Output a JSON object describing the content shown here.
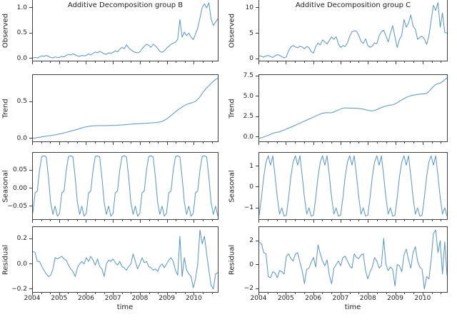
{
  "figure": {
    "xlabel": "time",
    "x_start": 2004,
    "x_end": 2010.9167,
    "x_tick_years": [
      2004,
      2005,
      2006,
      2007,
      2008,
      2009,
      2010
    ],
    "x_minor_fraction_step": 0.3333,
    "points_per_series": 84,
    "sampling": "monthly 2004-01 to 2010-12",
    "colors": {
      "line": "#5595c0",
      "spine": "#3f3f3f",
      "text": "#1f1f1f",
      "background": "#ffffff"
    }
  },
  "chart_data": [
    {
      "id": "observed-group-b",
      "type": "line",
      "title": "Additive Decomposition group B",
      "ylabel": "Observed",
      "y_ticks": [
        {
          "v": 1.0,
          "label": "1.0"
        },
        {
          "v": 0.5,
          "label": "0.5"
        },
        {
          "v": 0.0,
          "label": "0.0"
        }
      ],
      "values": [
        0.01,
        0.02,
        0.01,
        0.03,
        0.05,
        0.04,
        0.06,
        0.04,
        0.02,
        0.01,
        0.03,
        0.02,
        0.02,
        0.04,
        0.03,
        0.06,
        0.08,
        0.07,
        0.09,
        0.07,
        0.05,
        0.04,
        0.06,
        0.05,
        0.06,
        0.09,
        0.07,
        0.1,
        0.13,
        0.11,
        0.14,
        0.12,
        0.09,
        0.08,
        0.11,
        0.1,
        0.12,
        0.15,
        0.13,
        0.18,
        0.22,
        0.19,
        0.27,
        0.21,
        0.17,
        0.14,
        0.12,
        0.11,
        0.13,
        0.19,
        0.24,
        0.28,
        0.26,
        0.22,
        0.28,
        0.25,
        0.2,
        0.14,
        0.12,
        0.15,
        0.2,
        0.24,
        0.28,
        0.3,
        0.32,
        0.38,
        0.77,
        0.42,
        0.52,
        0.45,
        0.5,
        0.42,
        0.37,
        0.48,
        0.6,
        0.8,
        1.0,
        1.08,
        1.0,
        1.1,
        0.78,
        0.65,
        0.72,
        0.78
      ]
    },
    {
      "id": "trend-group-b",
      "type": "line",
      "ylabel": "Trend",
      "y_ticks": [
        {
          "v": 0.5,
          "label": "0.5"
        },
        {
          "v": 0.0,
          "label": "0.0"
        }
      ],
      "values": [
        0.0,
        0.005,
        0.01,
        0.015,
        0.02,
        0.025,
        0.03,
        0.034,
        0.038,
        0.043,
        0.048,
        0.054,
        0.06,
        0.067,
        0.074,
        0.082,
        0.09,
        0.098,
        0.106,
        0.114,
        0.123,
        0.132,
        0.141,
        0.15,
        0.158,
        0.163,
        0.167,
        0.17,
        0.171,
        0.172,
        0.172,
        0.173,
        0.173,
        0.174,
        0.174,
        0.175,
        0.175,
        0.176,
        0.178,
        0.18,
        0.182,
        0.185,
        0.187,
        0.19,
        0.192,
        0.195,
        0.197,
        0.199,
        0.2,
        0.202,
        0.204,
        0.206,
        0.208,
        0.21,
        0.212,
        0.215,
        0.218,
        0.222,
        0.23,
        0.245,
        0.262,
        0.285,
        0.31,
        0.335,
        0.36,
        0.385,
        0.405,
        0.425,
        0.445,
        0.46,
        0.472,
        0.48,
        0.488,
        0.505,
        0.53,
        0.565,
        0.61,
        0.65,
        0.685,
        0.715,
        0.745,
        0.775,
        0.8,
        0.82
      ]
    },
    {
      "id": "seasonal-group-b",
      "type": "line",
      "ylabel": "Seasonal",
      "y_ticks": [
        {
          "v": 0.05,
          "label": "0.05"
        },
        {
          "v": 0.0,
          "label": "0.00"
        },
        {
          "v": -0.05,
          "label": "−0.05"
        }
      ],
      "period_months": 12,
      "cycles": 7,
      "seasonal_pattern": [
        -0.07,
        -0.013,
        -0.008,
        0.05,
        0.088,
        0.09,
        0.087,
        0.03,
        -0.04,
        -0.073,
        -0.05,
        -0.078
      ]
    },
    {
      "id": "residual-group-b",
      "type": "line",
      "ylabel": "Residual",
      "y_ticks": [
        {
          "v": 0.2,
          "label": "0.2"
        },
        {
          "v": 0.0,
          "label": "0.0"
        },
        {
          "v": -0.2,
          "label": "−0.2"
        }
      ],
      "values": [
        0.1,
        0.09,
        0.02,
        0.02,
        -0.02,
        -0.05,
        -0.08,
        -0.1,
        -0.09,
        -0.04,
        0.05,
        0.04,
        0.05,
        0.06,
        0.04,
        0.03,
        -0.01,
        -0.04,
        -0.06,
        -0.1,
        -0.03,
        0.0,
        0.02,
        0.0,
        0.05,
        0.02,
        0.06,
        0.03,
        -0.01,
        0.04,
        -0.02,
        -0.04,
        -0.1,
        0.0,
        0.03,
        0.02,
        0.04,
        0.01,
        -0.01,
        0.02,
        -0.02,
        -0.03,
        -0.05,
        -0.02,
        0.0,
        0.08,
        0.02,
        -0.04,
        0.0,
        0.05,
        0.01,
        0.02,
        -0.02,
        -0.03,
        -0.05,
        -0.04,
        -0.06,
        -0.02,
        0.0,
        -0.03,
        0.0,
        0.03,
        0.05,
        0.02,
        -0.05,
        -0.09,
        0.22,
        -0.1,
        0.05,
        -0.05,
        -0.08,
        -0.1,
        -0.19,
        -0.12,
        0.0,
        0.27,
        0.16,
        0.22,
        0.08,
        -0.05,
        -0.17,
        -0.2,
        -0.08,
        -0.07
      ]
    },
    {
      "id": "observed-group-c",
      "type": "line",
      "title": "Additive Decomposition group C",
      "ylabel": "Observed",
      "y_ticks": [
        {
          "v": 10,
          "label": "10"
        },
        {
          "v": 5,
          "label": "5"
        },
        {
          "v": 0,
          "label": "0"
        }
      ],
      "values": [
        0.6,
        0.45,
        0.3,
        0.55,
        0.65,
        0.4,
        0.25,
        0.55,
        0.8,
        0.65,
        0.4,
        0.15,
        0.35,
        1.6,
        2.3,
        2.6,
        2.3,
        2.15,
        2.5,
        2.3,
        1.95,
        2.4,
        2.15,
        1.4,
        1.1,
        2.4,
        3.1,
        2.7,
        3.7,
        3.3,
        2.9,
        3.6,
        4.3,
        3.8,
        4.35,
        2.9,
        2.2,
        2.6,
        2.4,
        3.1,
        4.4,
        5.3,
        5.5,
        5.4,
        4.6,
        3.4,
        3.0,
        3.9,
        2.6,
        2.25,
        2.5,
        3.1,
        2.95,
        4.5,
        5.3,
        5.6,
        4.5,
        3.3,
        5.0,
        6.5,
        4.3,
        2.2,
        3.8,
        4.6,
        7.7,
        6.2,
        7.0,
        8.6,
        6.4,
        5.8,
        3.8,
        4.2,
        4.4,
        3.9,
        2.8,
        4.5,
        7.5,
        10.5,
        9.5,
        11.0,
        6.2,
        9.0,
        5.2,
        5.0
      ]
    },
    {
      "id": "trend-group-c",
      "type": "line",
      "ylabel": "Trend",
      "y_ticks": [
        {
          "v": 7.5,
          "label": "7.5"
        },
        {
          "v": 5.0,
          "label": "5.0"
        },
        {
          "v": 2.5,
          "label": "2.5"
        },
        {
          "v": 0.0,
          "label": "0.0"
        }
      ],
      "values": [
        -0.2,
        -0.12,
        -0.03,
        0.07,
        0.18,
        0.3,
        0.42,
        0.5,
        0.55,
        0.62,
        0.72,
        0.83,
        0.95,
        1.07,
        1.18,
        1.3,
        1.42,
        1.55,
        1.68,
        1.8,
        1.93,
        2.05,
        2.18,
        2.3,
        2.42,
        2.55,
        2.68,
        2.8,
        2.9,
        2.95,
        2.97,
        2.95,
        2.96,
        3.05,
        3.18,
        3.3,
        3.42,
        3.52,
        3.56,
        3.55,
        3.53,
        3.52,
        3.51,
        3.5,
        3.48,
        3.45,
        3.4,
        3.33,
        3.27,
        3.22,
        3.2,
        3.25,
        3.35,
        3.48,
        3.6,
        3.7,
        3.78,
        3.85,
        3.9,
        3.95,
        4.05,
        4.2,
        4.38,
        4.55,
        4.7,
        4.85,
        4.95,
        5.05,
        5.12,
        5.18,
        5.22,
        5.25,
        5.28,
        5.3,
        5.35,
        5.6,
        5.9,
        6.2,
        6.45,
        6.55,
        6.6,
        6.8,
        7.05,
        7.25
      ]
    },
    {
      "id": "seasonal-group-c",
      "type": "line",
      "ylabel": "Seasonal",
      "y_ticks": [
        {
          "v": 1,
          "label": "1"
        },
        {
          "v": 0,
          "label": "0"
        },
        {
          "v": -1,
          "label": "−1"
        }
      ],
      "period_months": 12,
      "cycles": 7,
      "seasonal_pattern": [
        -1.35,
        -0.5,
        0.5,
        1.2,
        1.5,
        1.05,
        1.5,
        0.55,
        -0.5,
        -1.3,
        -1.0,
        -1.4
      ]
    },
    {
      "id": "residual-group-c",
      "type": "line",
      "ylabel": "Residual",
      "y_ticks": [
        {
          "v": 2,
          "label": "2"
        },
        {
          "v": 0,
          "label": "0"
        },
        {
          "v": -2,
          "label": "−2"
        }
      ],
      "values": [
        1.9,
        1.75,
        1.0,
        0.9,
        -1.0,
        -1.1,
        -0.6,
        -0.7,
        -1.1,
        -0.5,
        -0.6,
        -0.8,
        0.7,
        0.9,
        0.5,
        0.3,
        0.9,
        1.0,
        0.2,
        -0.5,
        -1.6,
        -0.4,
        -0.3,
        0.2,
        0.6,
        -0.2,
        1.65,
        0.9,
        0.3,
        -0.1,
        0.4,
        -0.9,
        -1.6,
        -0.3,
        0.0,
        0.3,
        -0.1,
        0.6,
        0.7,
        0.3,
        -0.1,
        -0.3,
        0.9,
        0.6,
        0.5,
        0.8,
        0.9,
        -0.5,
        -1.2,
        -0.6,
        -0.2,
        0.6,
        0.3,
        -0.3,
        -0.1,
        2.2,
        0.0,
        -0.5,
        -0.2,
        -0.4,
        -1.8,
        0.0,
        -0.1,
        -0.6,
        0.8,
        1.3,
        0.4,
        -0.3,
        1.0,
        1.5,
        0.3,
        -0.2,
        -0.4,
        -2.05,
        -1.0,
        -1.2,
        0.4,
        2.6,
        2.9,
        1.0,
        2.0,
        -0.8,
        1.9,
        -0.9
      ]
    }
  ]
}
